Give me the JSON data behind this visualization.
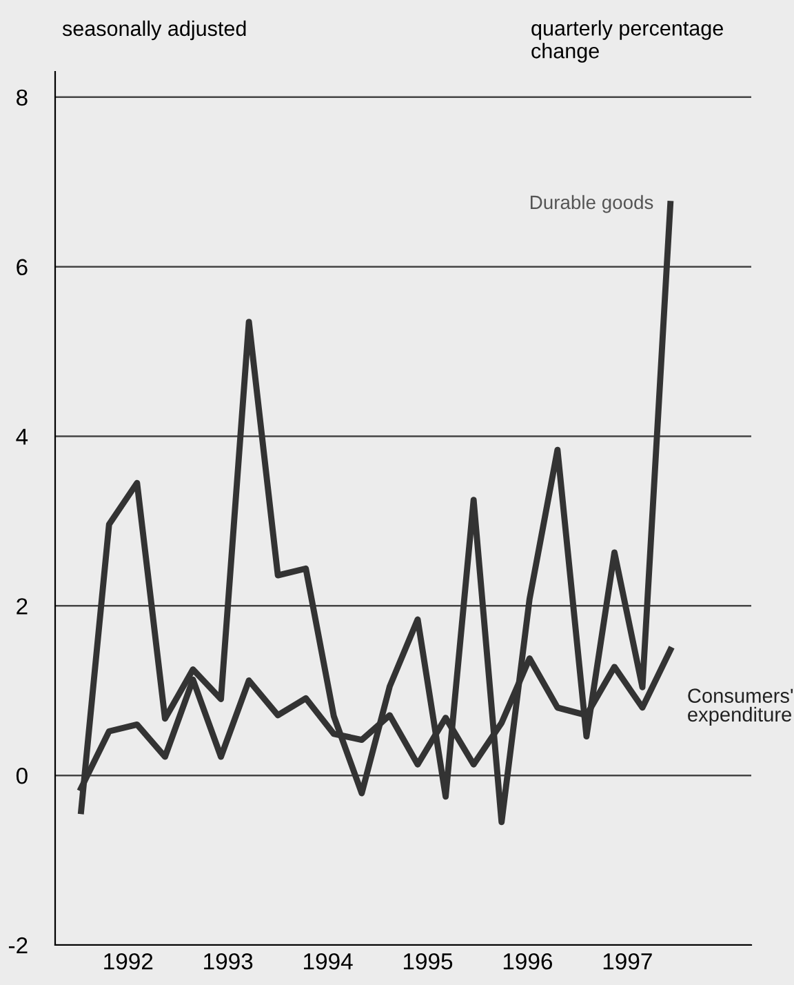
{
  "chart_data": {
    "type": "line",
    "title": "seasonally adjusted",
    "ylabel": "quarterly percentage change",
    "x": [
      1991.53,
      1991.81,
      1992.09,
      1992.37,
      1992.65,
      1992.93,
      1993.21,
      1993.5,
      1993.78,
      1994.06,
      1994.34,
      1994.62,
      1994.9,
      1995.18,
      1995.46,
      1995.74,
      1996.02,
      1996.3,
      1996.59,
      1996.87,
      1997.15,
      1997.43
    ],
    "series": [
      {
        "name": "Durable goods",
        "color": "#333333",
        "values": [
          -0.42,
          2.96,
          3.45,
          0.67,
          1.25,
          0.9,
          5.35,
          2.36,
          2.44,
          0.7,
          -0.21,
          1.05,
          1.84,
          -0.25,
          3.25,
          -0.55,
          2.08,
          3.84,
          0.46,
          2.63,
          1.04,
          6.74
        ]
      },
      {
        "name": "Consumers' expenditure",
        "color": "#333333",
        "values": [
          -0.15,
          0.52,
          0.6,
          0.22,
          1.13,
          0.22,
          1.12,
          0.71,
          0.91,
          0.49,
          0.42,
          0.71,
          0.13,
          0.68,
          0.13,
          0.62,
          1.38,
          0.8,
          0.71,
          1.28,
          0.8,
          1.48
        ]
      }
    ],
    "xlim": [
      1991.27,
      1998.24
    ],
    "ylim": [
      -2,
      8.3
    ],
    "xticks": [
      1992,
      1993,
      1994,
      1995,
      1996,
      1997
    ],
    "yticks": [
      -2,
      0,
      2,
      4,
      6,
      8
    ],
    "grid": "y",
    "line_style": "solid",
    "marker": "none",
    "legend": false
  }
}
